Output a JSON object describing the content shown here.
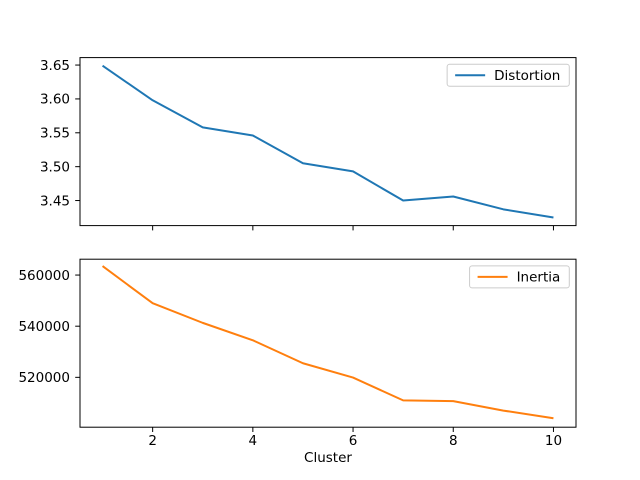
{
  "figure": {
    "background": "#ffffff",
    "xlabel": "Cluster"
  },
  "chart_data": [
    {
      "type": "line",
      "title": "",
      "x": [
        1,
        2,
        3,
        4,
        5,
        6,
        7,
        8,
        9,
        10
      ],
      "series": [
        {
          "name": "Distortion",
          "color": "#1f77b4",
          "values": [
            3.649,
            3.598,
            3.558,
            3.546,
            3.505,
            3.493,
            3.45,
            3.456,
            3.437,
            3.425
          ]
        }
      ],
      "xlim": [
        0.55,
        10.45
      ],
      "ylim": [
        3.413,
        3.661
      ],
      "xticks": [
        2,
        4,
        6,
        8,
        10
      ],
      "xtick_labels": [
        "2",
        "4",
        "6",
        "8",
        "10"
      ],
      "show_xtick_labels": false,
      "yticks": [
        3.45,
        3.5,
        3.55,
        3.6,
        3.65
      ],
      "ytick_labels": [
        "3.45",
        "3.50",
        "3.55",
        "3.60",
        "3.65"
      ],
      "grid": false,
      "legend": {
        "label": "Distortion",
        "position": "upper right"
      }
    },
    {
      "type": "line",
      "title": "",
      "x": [
        1,
        2,
        3,
        4,
        5,
        6,
        7,
        8,
        9,
        10
      ],
      "series": [
        {
          "name": "Inertia",
          "color": "#ff7f0e",
          "values": [
            563500,
            549000,
            541300,
            534500,
            525500,
            519900,
            511000,
            510700,
            507000,
            504000
          ]
        }
      ],
      "xlim": [
        0.55,
        10.45
      ],
      "ylim": [
        500500,
        566200
      ],
      "xticks": [
        2,
        4,
        6,
        8,
        10
      ],
      "xtick_labels": [
        "2",
        "4",
        "6",
        "8",
        "10"
      ],
      "show_xtick_labels": true,
      "yticks": [
        520000,
        540000,
        560000
      ],
      "ytick_labels": [
        "520000",
        "540000",
        "560000"
      ],
      "grid": false,
      "xlabel": "Cluster",
      "legend": {
        "label": "Inertia",
        "position": "upper right"
      }
    }
  ]
}
